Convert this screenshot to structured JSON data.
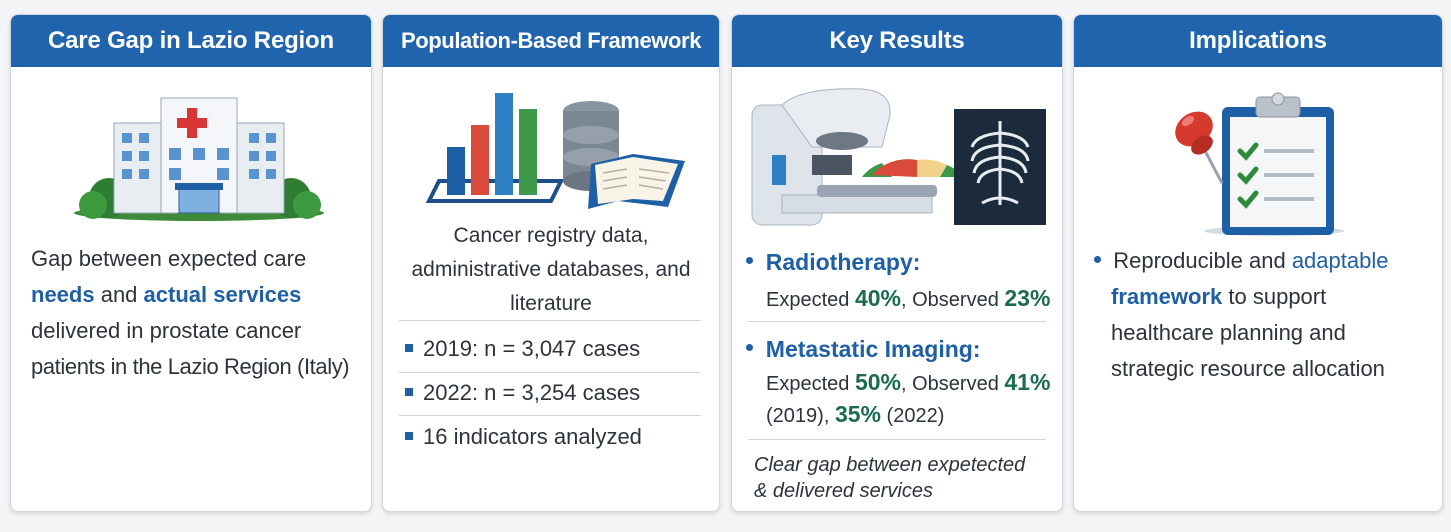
{
  "panels": {
    "care_gap": {
      "title": "Care Gap in Lazio Region",
      "text": {
        "p1": "Gap between expected care",
        "needs": "needs",
        "and": " and ",
        "actual": "actual services",
        "p3": "delivered in prostate cancer",
        "p4": "patients in the Lazio Region (Italy)"
      },
      "icon": "hospital-icon"
    },
    "framework": {
      "title": "Population-Based Framework",
      "intro": {
        "l1": "Cancer registry data,",
        "l2": "administrative databases, and",
        "l3": "literature"
      },
      "items": [
        "2019: n = 3,047 cases",
        "2022: n = 3,254 cases",
        "16 indicators analyzed"
      ],
      "icon": "data-sources-icon"
    },
    "results": {
      "title": "Key Results",
      "radiotherapy": {
        "label": "Radiotherapy:",
        "expected_text": "Expected ",
        "expected_value": "40%",
        "observed_text": ", Observed ",
        "observed_value": "23%"
      },
      "imaging": {
        "label": "Metastatic Imaging:",
        "expected_text": "Expected ",
        "expected_value": "50%",
        "observed_text": ", Observed ",
        "observed_value": "41%",
        "y2019": "(2019), ",
        "value2022": "35%",
        "y2022": " (2022)"
      },
      "note": {
        "l1": "Clear gap between expetected",
        "l2": "& delivered services"
      },
      "icon": "radiotherapy-machine-icon"
    },
    "implications": {
      "title": "Implications",
      "text": {
        "p1": "Reproducible and ",
        "adaptable": "adaptable",
        "framework": "framework",
        "p2": " to support",
        "p3": "healthcare planning and",
        "p4": "strategic resource allocation"
      },
      "icon": "clipboard-checklist-icon"
    }
  },
  "colors": {
    "header": "#1f64ad",
    "accent_blue": "#1f5fa6",
    "accent_green": "#1d6b4f"
  }
}
